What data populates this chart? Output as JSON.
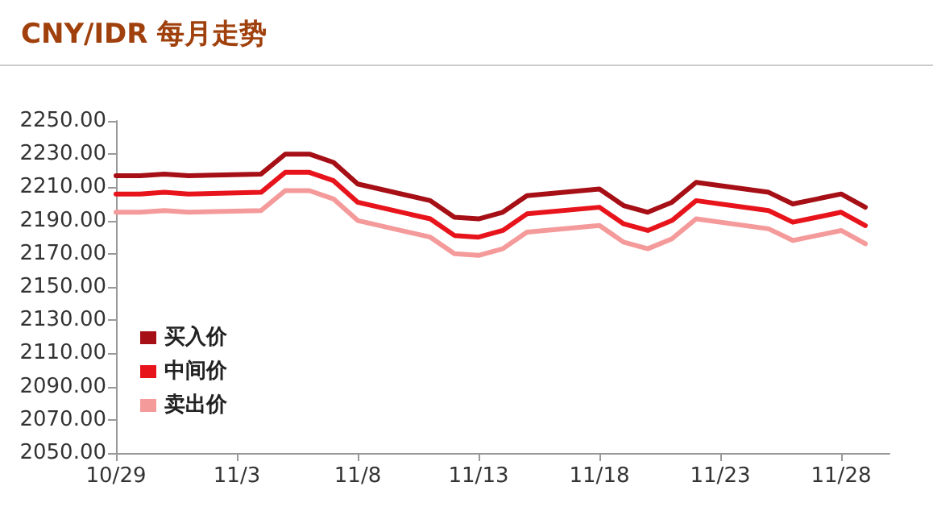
{
  "chart_data": {
    "type": "line",
    "title": "CNY/IDR 每月走势",
    "x": [
      "--10-29",
      "--10-30",
      "--10-31",
      "--11-01",
      "--11-04",
      "--11-05",
      "--11-06",
      "--11-07",
      "--11-08",
      "--11-11",
      "--11-12",
      "--11-13",
      "--11-14",
      "--11-15",
      "--11-18",
      "--11-19",
      "--11-20",
      "--11-21",
      "--11-22",
      "--11-25",
      "--11-26",
      "--11-27",
      "--11-28",
      "--11-29"
    ],
    "series": [
      {
        "name": "买入价",
        "color": "#a50f15",
        "values": [
          2217,
          2217,
          2218,
          2217,
          2218,
          2230,
          2230,
          2225,
          2212,
          2202,
          2192,
          2191,
          2195,
          2205,
          2209,
          2199,
          2195,
          2201,
          2213,
          2207,
          2200,
          2203,
          2206,
          2198
        ]
      },
      {
        "name": "中间价",
        "color": "#e8141c",
        "values": [
          2206,
          2206,
          2207,
          2206,
          2207,
          2219,
          2219,
          2214,
          2201,
          2191,
          2181,
          2180,
          2184,
          2194,
          2198,
          2188,
          2184,
          2190,
          2202,
          2196,
          2189,
          2192,
          2195,
          2187
        ]
      },
      {
        "name": "卖出价",
        "color": "#f59a9a",
        "values": [
          2195,
          2195,
          2196,
          2195,
          2196,
          2208,
          2208,
          2203,
          2190,
          2180,
          2170,
          2169,
          2173,
          2183,
          2187,
          2177,
          2173,
          2179,
          2191,
          2185,
          2178,
          2181,
          2184,
          2176
        ]
      }
    ],
    "xlim": [
      "--10-29",
      "--11-30"
    ],
    "xticks": [
      {
        "value": "--10-29",
        "label": "10/29"
      },
      {
        "value": "--11-03",
        "label": "11/3"
      },
      {
        "value": "--11-08",
        "label": "11/8"
      },
      {
        "value": "--11-13",
        "label": "11/13"
      },
      {
        "value": "--11-18",
        "label": "11/18"
      },
      {
        "value": "--11-23",
        "label": "11/23"
      },
      {
        "value": "--11-28",
        "label": "11/28"
      }
    ],
    "ylim": [
      2050,
      2250
    ],
    "yticks": [
      {
        "value": 2050,
        "label": "2050.00"
      },
      {
        "value": 2070,
        "label": "2070.00"
      },
      {
        "value": 2090,
        "label": "2090.00"
      },
      {
        "value": 2110,
        "label": "2110.00"
      },
      {
        "value": 2130,
        "label": "2130.00"
      },
      {
        "value": 2150,
        "label": "2150.00"
      },
      {
        "value": 2170,
        "label": "2170.00"
      },
      {
        "value": 2190,
        "label": "2190.00"
      },
      {
        "value": 2210,
        "label": "2210.00"
      },
      {
        "value": 2230,
        "label": "2230.00"
      },
      {
        "value": 2250,
        "label": "2250.00"
      }
    ],
    "grid": false,
    "legend": "bottom left",
    "marker": "none",
    "line_style": "solid"
  }
}
